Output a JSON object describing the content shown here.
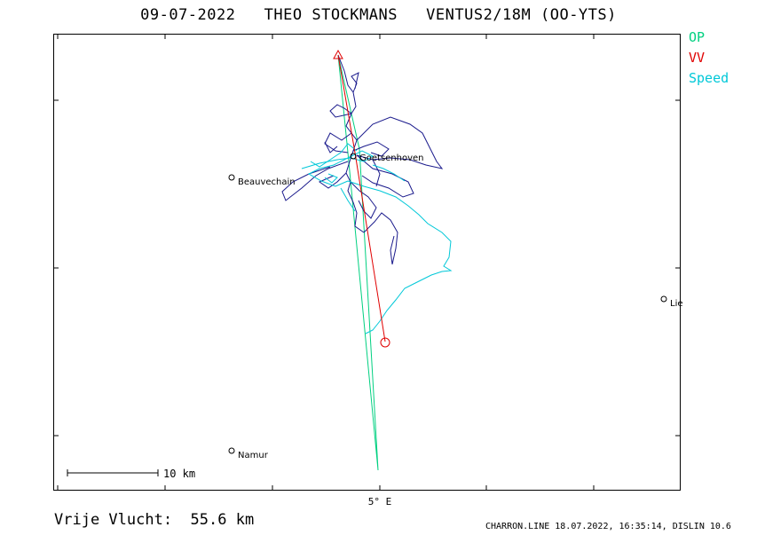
{
  "header": {
    "title": "09-07-2022   THEO STOCKMANS   VENTUS2/18M (OO-YTS)"
  },
  "legend": [
    {
      "label": "OP",
      "color": "#00d080"
    },
    {
      "label": "VV",
      "color": "#e00000"
    },
    {
      "label": "Speed",
      "color": "#00c8d8"
    }
  ],
  "towns": [
    {
      "name": "Goetsenhoven"
    },
    {
      "name": "Beauvechain"
    },
    {
      "name": "Namur"
    },
    {
      "name": "Lie"
    }
  ],
  "axis": {
    "x_tick_label": "5° E"
  },
  "scale_bar": {
    "label": "10 km"
  },
  "summary": {
    "distance_label": "Vrije Vlucht:",
    "distance_value": "55.6 km"
  },
  "footer": {
    "text": "CHARRON.LINE 18.07.2022, 16:35:14, DISLIN 10.6"
  },
  "colors": {
    "track": "#1a1a8c",
    "speed": "#00c8d8",
    "op": "#00d080",
    "vv": "#e00000"
  }
}
